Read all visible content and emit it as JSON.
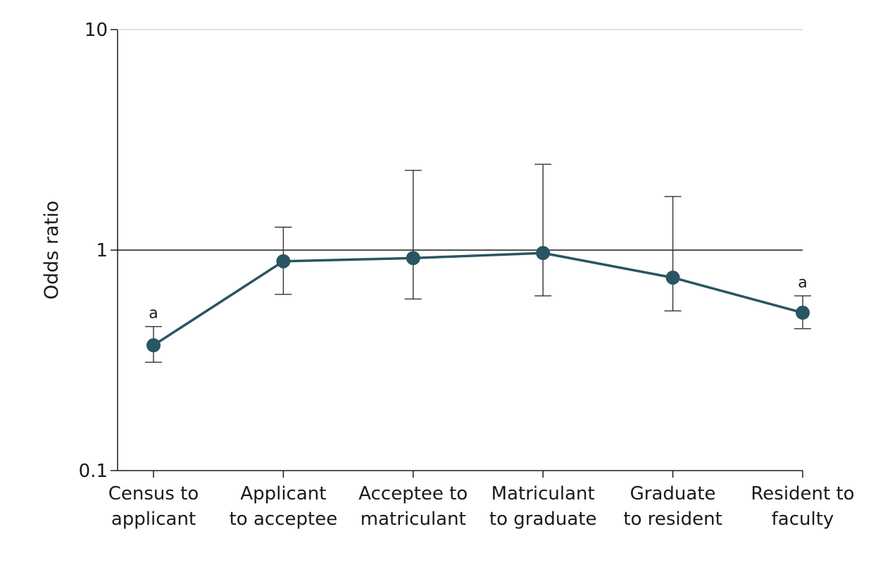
{
  "chart_data": {
    "type": "line",
    "ylabel": "Odds ratio",
    "xlabel": "",
    "y_scale": "log",
    "ylim": [
      0.1,
      10
    ],
    "y_ticks": [
      {
        "value": 0.1,
        "label": "0.1"
      },
      {
        "value": 1,
        "label": "1"
      },
      {
        "value": 10,
        "label": "10"
      }
    ],
    "reference_line": 1,
    "categories": [
      [
        "Census to",
        "applicant"
      ],
      [
        "Applicant",
        "to acceptee"
      ],
      [
        "Acceptee to",
        "matriculant"
      ],
      [
        "Matriculant",
        "to graduate"
      ],
      [
        "Graduate",
        "to resident"
      ],
      [
        "Resident to",
        "faculty"
      ]
    ],
    "series": [
      {
        "values": [
          0.37,
          0.89,
          0.92,
          0.97,
          0.75,
          0.52
        ],
        "ci_low": [
          0.31,
          0.63,
          0.6,
          0.62,
          0.53,
          0.44
        ],
        "ci_high": [
          0.45,
          1.27,
          2.3,
          2.45,
          1.75,
          0.62
        ],
        "annotations": [
          "a",
          "",
          "",
          "",
          "",
          "a"
        ]
      }
    ],
    "colors": {
      "series": "#2a5562",
      "axis": "#1a1a1a"
    },
    "grid": false
  }
}
